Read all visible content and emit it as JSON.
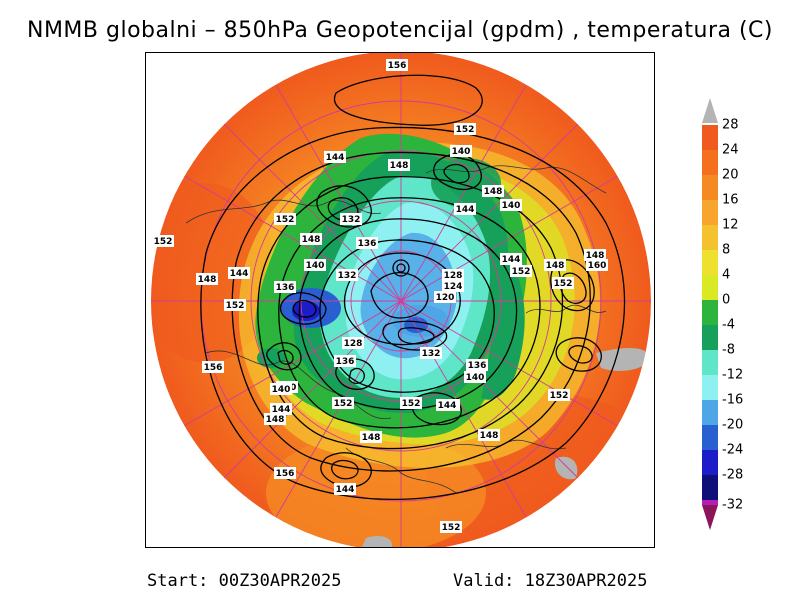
{
  "title": "NMMB globalni – 850hPa Geopotencijal (gpdm) , temperatura (C)",
  "footer": {
    "start": "Start: 00Z30APR2025",
    "valid": "Valid: 18Z30APR2025"
  },
  "colorbar": {
    "labels": [
      "28",
      "24",
      "20",
      "16",
      "12",
      "8",
      "4",
      "0",
      "-4",
      "-8",
      "-12",
      "-16",
      "-20",
      "-24",
      "-28",
      "-32"
    ],
    "colors": [
      "#f05a1e",
      "#f4701e",
      "#f58a23",
      "#f7a52d",
      "#f5c22f",
      "#efdf2e",
      "#d9ea25",
      "#2db43c",
      "#16a05a",
      "#5fe6c8",
      "#8ff0f2",
      "#4fa6e6",
      "#2a5fd2",
      "#1c1cc8",
      "#0f0f78",
      "#b41eb4"
    ],
    "top_arrow_color": "#b4b4b4",
    "bottom_arrow_color": "#8c145a"
  },
  "contour_labels": [
    "156",
    "152",
    "140",
    "144",
    "148",
    "152",
    "148",
    "144",
    "140",
    "132",
    "136",
    "148",
    "140",
    "132",
    "152",
    "152",
    "144",
    "148",
    "136",
    "152",
    "148",
    "148",
    "160",
    "144",
    "128",
    "124",
    "120",
    "152",
    "128",
    "136",
    "156",
    "132",
    "140",
    "136",
    "140",
    "148",
    "144",
    "152",
    "152",
    "148",
    "152",
    "148",
    "148",
    "156",
    "144",
    "152",
    "140",
    "144"
  ]
}
